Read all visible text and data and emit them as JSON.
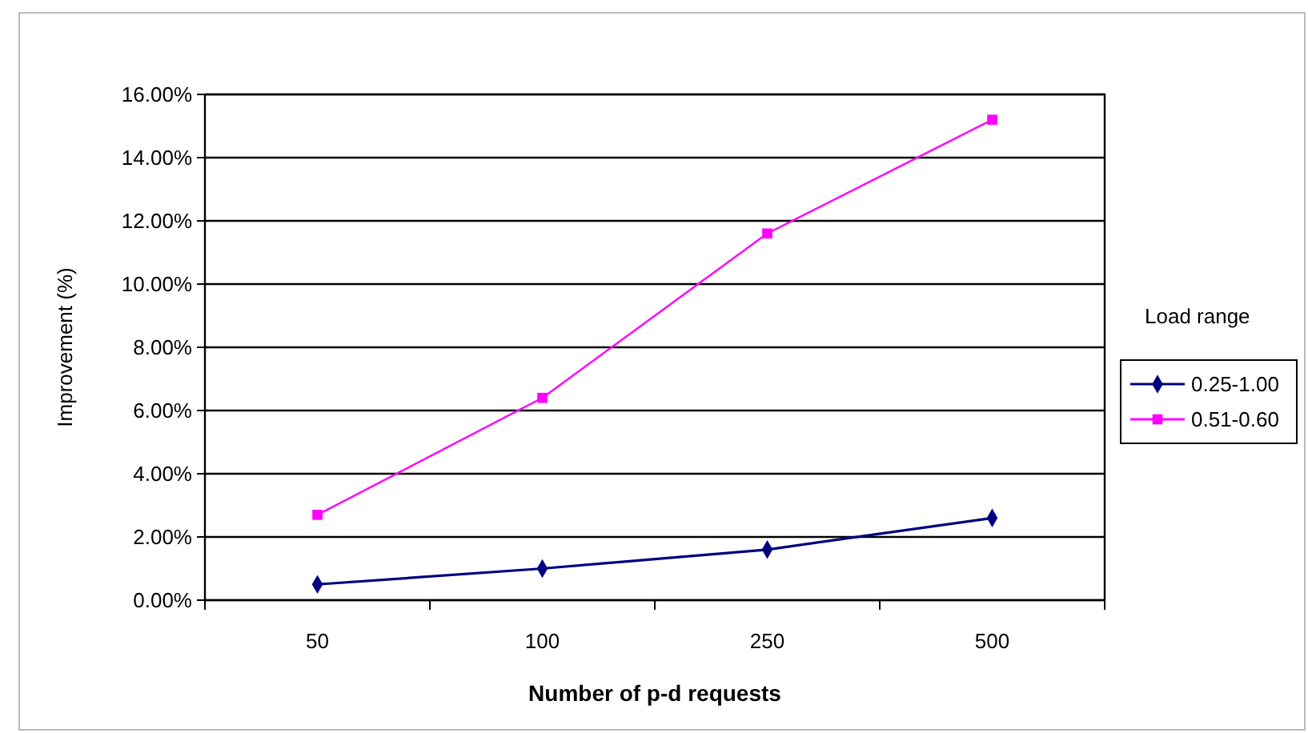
{
  "chart_data": {
    "type": "line",
    "xlabel": "Number of p-d requests",
    "ylabel": "Improvement (%)",
    "legend_title": "Load range",
    "categories": [
      "50",
      "100",
      "250",
      "500"
    ],
    "series": [
      {
        "name": "0.25-1.00",
        "color": "#000080",
        "marker": "diamond",
        "values": [
          0.5,
          1.0,
          1.6,
          2.6
        ]
      },
      {
        "name": "0.51-0.60",
        "color": "#ff00ff",
        "marker": "square",
        "values": [
          2.7,
          6.4,
          11.6,
          15.2
        ]
      }
    ],
    "ylim": [
      0,
      16
    ],
    "yticks": [
      {
        "value": 0,
        "label": "0.00%"
      },
      {
        "value": 2,
        "label": "2.00%"
      },
      {
        "value": 4,
        "label": "4.00%"
      },
      {
        "value": 6,
        "label": "6.00%"
      },
      {
        "value": 8,
        "label": "8.00%"
      },
      {
        "value": 10,
        "label": "10.00%"
      },
      {
        "value": 12,
        "label": "12.00%"
      },
      {
        "value": 14,
        "label": "14.00%"
      },
      {
        "value": 16,
        "label": "16.00%"
      }
    ],
    "grid": "y",
    "legend": "right"
  }
}
